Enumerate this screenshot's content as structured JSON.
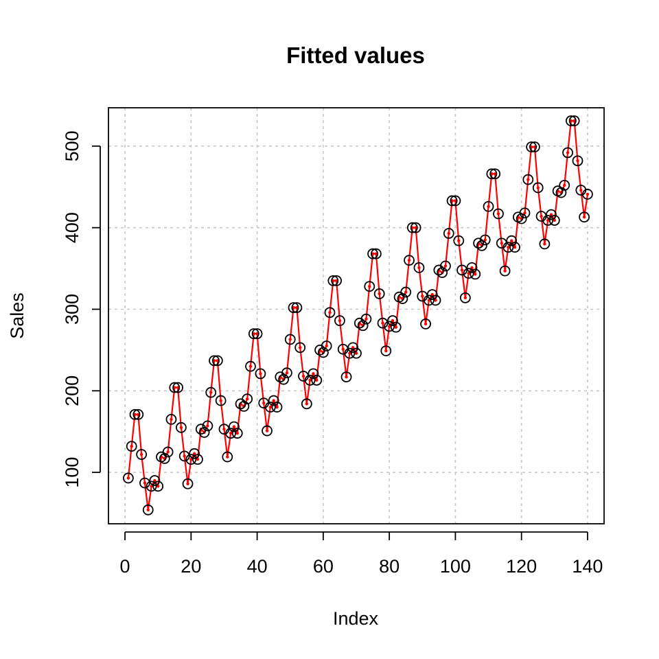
{
  "chart_data": {
    "type": "scatter",
    "title": "Fitted values",
    "xlabel": "Index",
    "ylabel": "Sales",
    "xlim": [
      -5,
      145
    ],
    "ylim": [
      37,
      547
    ],
    "x_ticks": [
      0,
      20,
      40,
      60,
      80,
      100,
      120,
      140
    ],
    "y_ticks": [
      100,
      200,
      300,
      400,
      500
    ],
    "grid": true,
    "legend": "none",
    "observed_color": "#000000",
    "fitted_color": "#ff0000",
    "series": [
      {
        "kind": "observed points (open circles)",
        "values": [
          93,
          132,
          171,
          171,
          122,
          87,
          54,
          83,
          90,
          83,
          119,
          117,
          125,
          165,
          204,
          204,
          155,
          120,
          86,
          116,
          123,
          116,
          153,
          149,
          157,
          198,
          237,
          237,
          188,
          153,
          119,
          148,
          156,
          148,
          184,
          181,
          190,
          230,
          270,
          270,
          221,
          185,
          151,
          180,
          188,
          180,
          217,
          214,
          222,
          263,
          302,
          302,
          253,
          218,
          184,
          213,
          221,
          213,
          250,
          247,
          255,
          296,
          335,
          335,
          286,
          251,
          217,
          246,
          253,
          246,
          283,
          280,
          288,
          328,
          368,
          368,
          319,
          283,
          249,
          279,
          286,
          278,
          315,
          313,
          321,
          360,
          400,
          400,
          351,
          316,
          282,
          311,
          318,
          311,
          348,
          345,
          353,
          393,
          433,
          433,
          384,
          348,
          314,
          344,
          351,
          343,
          381,
          378,
          385,
          426,
          466,
          466,
          417,
          381,
          347,
          376,
          384,
          376,
          413,
          411,
          418,
          459,
          499,
          499,
          449,
          414,
          380,
          409,
          416,
          409,
          445,
          443,
          452,
          492,
          531,
          531,
          482,
          446,
          413,
          441
        ]
      },
      {
        "kind": "fitted values (red line with points)",
        "values": [
          93,
          132,
          171,
          171,
          122,
          87,
          54,
          83,
          90,
          83,
          119,
          117,
          125,
          165,
          204,
          204,
          155,
          120,
          86,
          116,
          123,
          116,
          153,
          149,
          157,
          198,
          237,
          237,
          188,
          153,
          119,
          148,
          156,
          148,
          184,
          181,
          190,
          230,
          270,
          270,
          221,
          185,
          151,
          180,
          188,
          180,
          217,
          214,
          222,
          263,
          302,
          302,
          253,
          218,
          184,
          213,
          221,
          213,
          250,
          247,
          255,
          296,
          335,
          335,
          286,
          251,
          217,
          246,
          253,
          246,
          283,
          280,
          288,
          328,
          368,
          368,
          319,
          283,
          249,
          279,
          286,
          278,
          315,
          313,
          321,
          360,
          400,
          400,
          351,
          316,
          282,
          311,
          318,
          311,
          348,
          345,
          353,
          393,
          433,
          433,
          384,
          348,
          314,
          344,
          351,
          343,
          381,
          378,
          385,
          426,
          466,
          466,
          417,
          381,
          347,
          376,
          384,
          376,
          413,
          411,
          418,
          459,
          499,
          499,
          449,
          414,
          380,
          409,
          416,
          409,
          445,
          443,
          452,
          492,
          531,
          531,
          482,
          446,
          413,
          441
        ]
      }
    ]
  }
}
